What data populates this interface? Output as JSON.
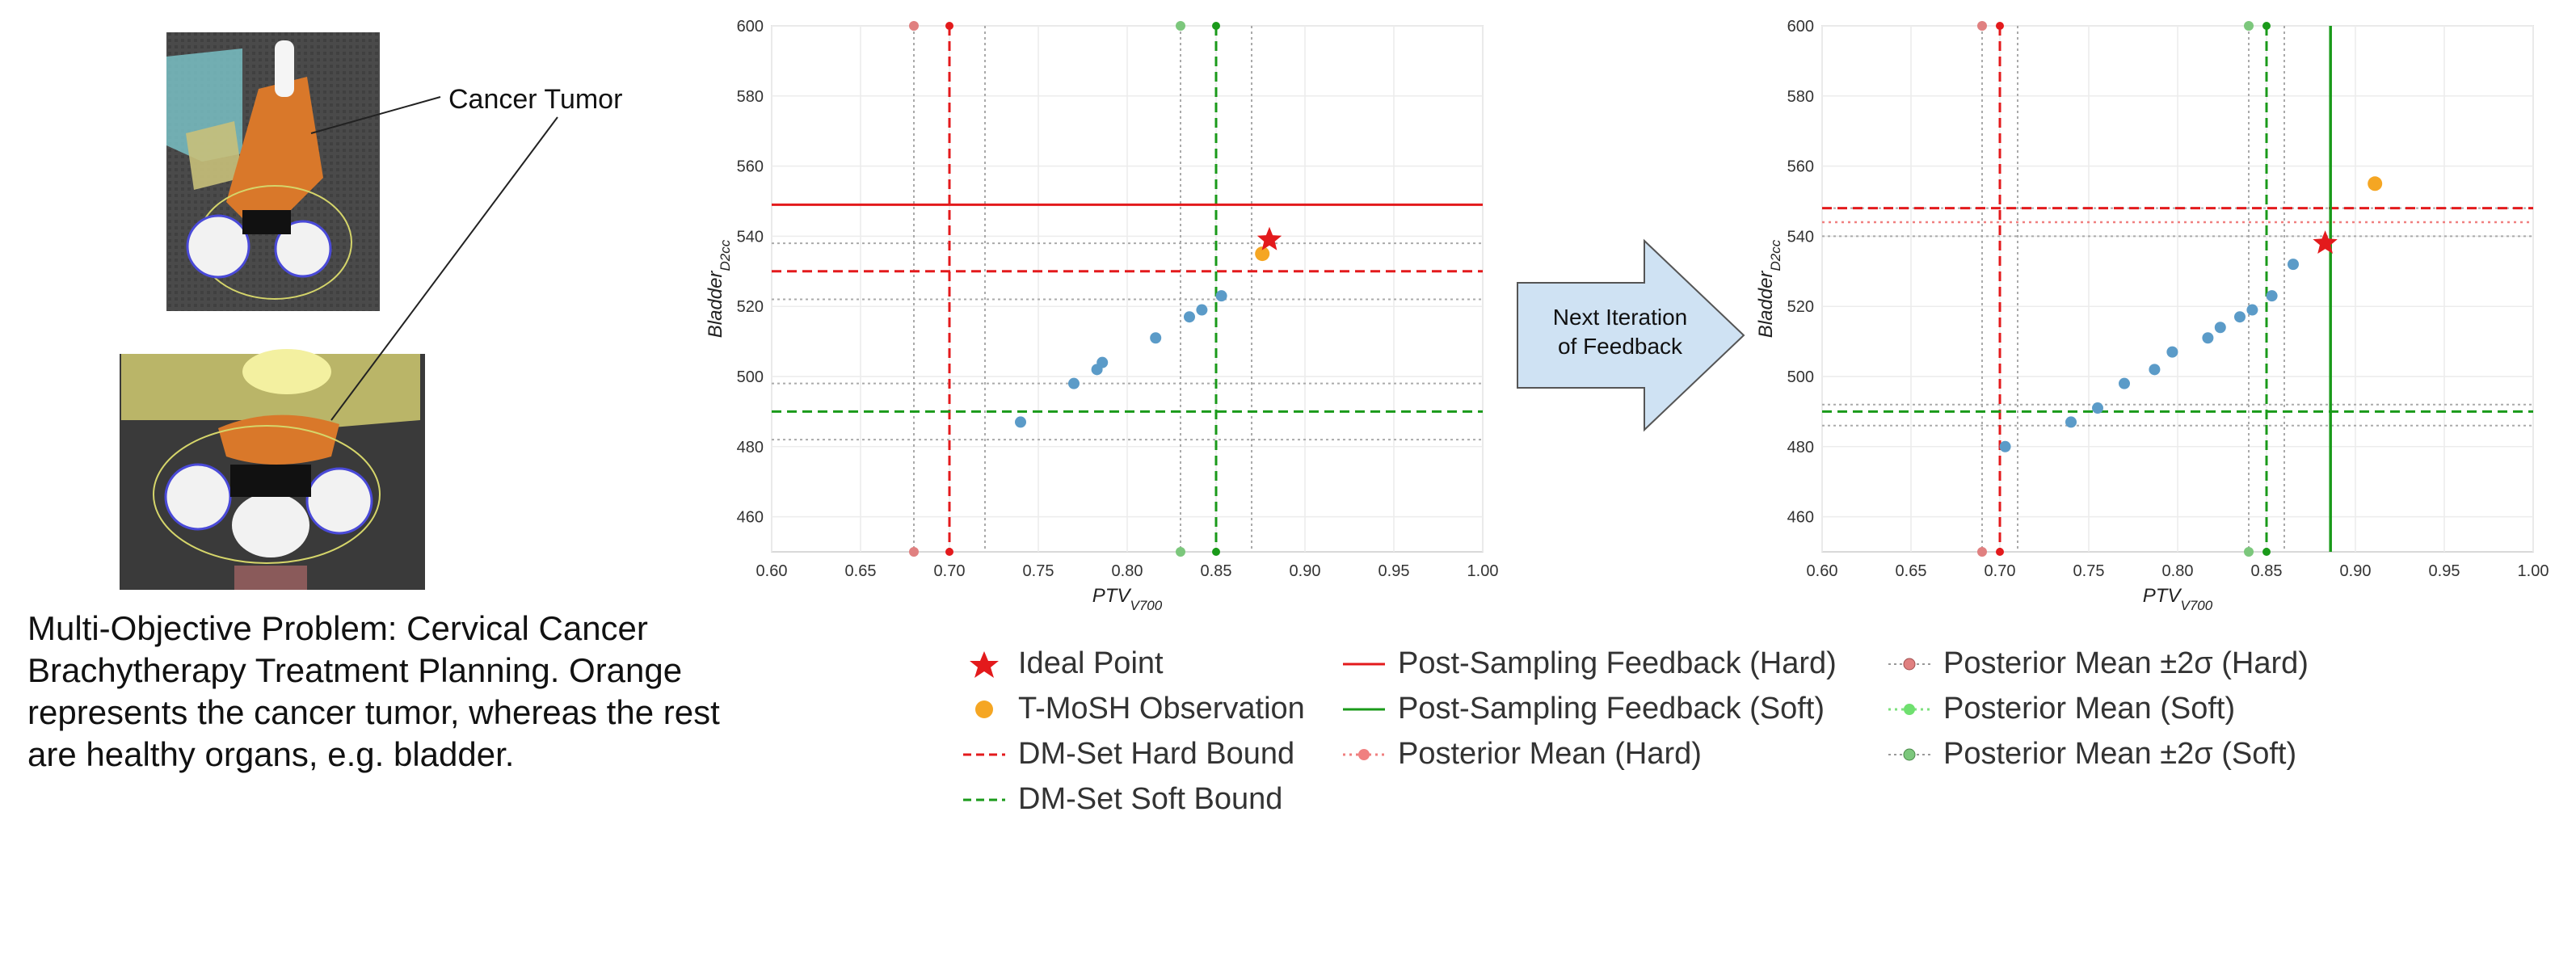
{
  "left_panel": {
    "tumor_label": "Cancer Tumor",
    "caption": "Multi-Objective Problem: Cervical Cancer Brachytherapy Treatment Planning. Orange represents the cancer tumor, whereas the rest are healthy organs, e.g. bladder."
  },
  "arrow": {
    "line1": "Next Iteration",
    "line2": "of Feedback"
  },
  "legend": {
    "ideal_point": "Ideal Point",
    "tmosh": "T-MoSH Observation",
    "dm_hard": "DM-Set Hard Bound",
    "dm_soft": "DM-Set Soft Bound",
    "post_hard": "Post-Sampling Feedback (Hard)",
    "post_soft": "Post-Sampling Feedback (Soft)",
    "pm_hard": "Posterior Mean (Hard)",
    "pm2s_hard": "Posterior Mean ±2σ (Hard)",
    "pm_soft": "Posterior Mean (Soft)",
    "pm2s_soft": "Posterior Mean ±2σ (Soft)"
  },
  "colors": {
    "hard": "#e31a1c",
    "soft": "#1a9a1a",
    "obs": "#5b9bc8",
    "tmosh": "#f5a623",
    "arrow_fill": "#cfe2f3"
  },
  "chart_data": [
    {
      "type": "scatter",
      "xlabel": "PTV",
      "xlabel_sub": "V700",
      "ylabel": "Bladder",
      "ylabel_sub": "D2cc",
      "xlim": [
        0.6,
        1.0
      ],
      "ylim": [
        450,
        600
      ],
      "xticks": [
        "0.60",
        "0.65",
        "0.70",
        "0.75",
        "0.80",
        "0.85",
        "0.90",
        "0.95",
        "1.00"
      ],
      "yticks": [
        "460",
        "480",
        "500",
        "520",
        "540",
        "560",
        "580",
        "600"
      ],
      "observations": {
        "x": [
          0.74,
          0.77,
          0.783,
          0.786,
          0.816,
          0.835,
          0.842,
          0.853
        ],
        "y": [
          487,
          498,
          502,
          504,
          511,
          517,
          519,
          523
        ]
      },
      "tmosh_point": {
        "x": 0.876,
        "y": 535
      },
      "ideal_point": {
        "x": 0.88,
        "y": 539
      },
      "post_sampling_hard_y": 549,
      "dm_hard_x": 0.7,
      "dm_hard_y": 530,
      "dm_soft_x": 0.85,
      "dm_soft_y": 490,
      "posterior_2sigma_hard_x": [
        0.68,
        0.72
      ],
      "posterior_2sigma_soft_x": [
        0.83,
        0.87
      ],
      "posterior_2sigma_hard_y": [
        522,
        538
      ],
      "posterior_2sigma_soft_y": [
        482,
        498
      ]
    },
    {
      "type": "scatter",
      "xlabel": "PTV",
      "xlabel_sub": "V700",
      "ylabel": "Bladder",
      "ylabel_sub": "D2cc",
      "xlim": [
        0.6,
        1.0
      ],
      "ylim": [
        450,
        600
      ],
      "xticks": [
        "0.60",
        "0.65",
        "0.70",
        "0.75",
        "0.80",
        "0.85",
        "0.90",
        "0.95",
        "1.00"
      ],
      "yticks": [
        "460",
        "480",
        "500",
        "520",
        "540",
        "560",
        "580",
        "600"
      ],
      "observations": {
        "x": [
          0.703,
          0.74,
          0.755,
          0.77,
          0.787,
          0.797,
          0.817,
          0.824,
          0.835,
          0.842,
          0.853,
          0.865
        ],
        "y": [
          480,
          487,
          491,
          498,
          502,
          507,
          511,
          514,
          517,
          519,
          523,
          532
        ]
      },
      "tmosh_point": {
        "x": 0.911,
        "y": 555
      },
      "ideal_point": {
        "x": 0.883,
        "y": 538
      },
      "post_sampling_soft_x": 0.886,
      "dm_hard_x": 0.7,
      "dm_hard_y": 548,
      "dm_soft_x": 0.85,
      "dm_soft_y": 490,
      "posterior_mean_hard_y": 544,
      "posterior_2sigma_hard_x": [
        0.69,
        0.71
      ],
      "posterior_2sigma_soft_x": [
        0.84,
        0.86
      ],
      "posterior_2sigma_hard_y": [
        540,
        548
      ],
      "posterior_2sigma_soft_y": [
        486,
        492
      ]
    }
  ]
}
